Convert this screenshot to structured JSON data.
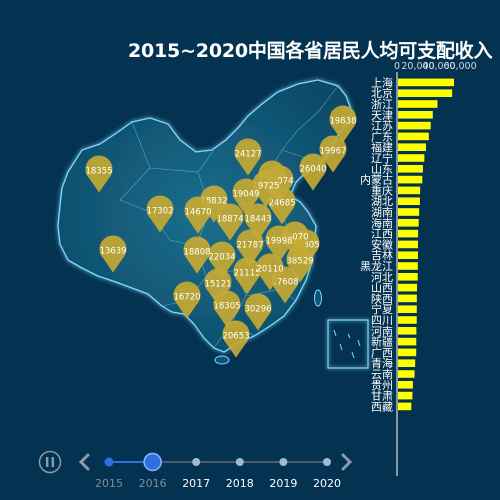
{
  "title": "2015~2020中国各省居民人均可支配收入",
  "colors": {
    "background": "#043351",
    "map_fill": "#0d5373",
    "map_glow": "#7fd8ff",
    "pin": "#c4a934",
    "bar": "#ffff00",
    "timeline_active": "#2f6fe0",
    "timeline_dot": "#a7b6d8"
  },
  "timeline": {
    "play_icon": "pause-icon",
    "years": [
      "2015",
      "2016",
      "2017",
      "2018",
      "2019",
      "2020"
    ],
    "current": "2016"
  },
  "chart_data": [
    {
      "type": "bar",
      "orientation": "horizontal",
      "year": "2016",
      "xlim": [
        0,
        60000
      ],
      "xticks": [
        "0",
        "20,000",
        "40,000",
        "60,000"
      ],
      "categories": [
        "上海",
        "北京",
        "浙江",
        "天津",
        "江苏",
        "广东",
        "福建",
        "辽宁",
        "山东",
        "内蒙古",
        "重庆",
        "湖北",
        "湖南",
        "海南",
        "江西",
        "安徽",
        "吉林",
        "黑龙江",
        "河北",
        "山西",
        "陕西",
        "宁夏",
        "四川",
        "河南",
        "新疆",
        "广西",
        "青海",
        "云南",
        "贵州",
        "甘肃",
        "西藏"
      ],
      "values": [
        54305,
        52530,
        38529,
        34074,
        32070,
        30296,
        27608,
        26040,
        24685,
        24127,
        22034,
        21787,
        21115,
        20653,
        20110,
        19998,
        19967,
        19838,
        19725,
        19049,
        18874,
        18832,
        18808,
        18443,
        18355,
        18305,
        17302,
        16720,
        15121,
        14670,
        13639
      ]
    },
    {
      "type": "scatter",
      "kind": "map-pins",
      "labels": [
        "54305",
        "52530",
        "38529",
        "34074",
        "32070",
        "30296",
        "27608",
        "26040",
        "24685",
        "24127",
        "22034",
        "21787",
        "21115",
        "20653",
        "20110",
        "19998",
        "19967",
        "19838",
        "19725",
        "19049",
        "18874",
        "18832",
        "18808",
        "18443",
        "18355",
        "18305",
        "17302",
        "16720",
        "15121",
        "14670",
        "13639"
      ],
      "provinces": [
        "上海",
        "北京",
        "浙江",
        "天津",
        "江苏",
        "广东",
        "福建",
        "辽宁",
        "山东",
        "内蒙古",
        "重庆",
        "湖北",
        "湖南",
        "海南",
        "江西",
        "安徽",
        "吉林",
        "黑龙江",
        "河北",
        "山西",
        "陕西",
        "宁夏",
        "四川",
        "河南",
        "新疆",
        "广西",
        "青海",
        "云南",
        "贵州",
        "甘肃",
        "西藏"
      ]
    }
  ]
}
